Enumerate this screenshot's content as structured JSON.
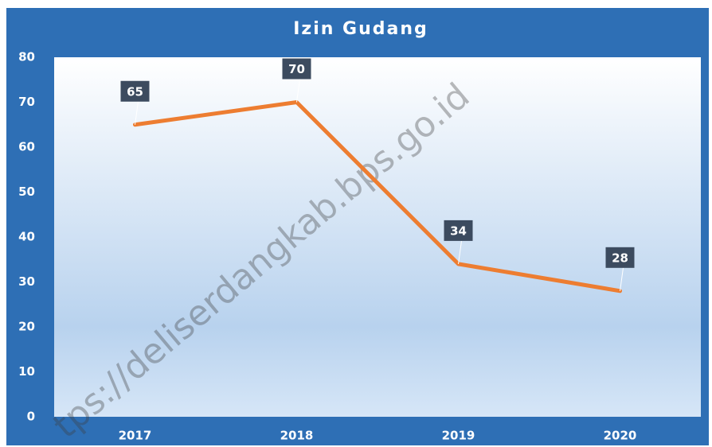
{
  "chart_data": {
    "type": "line",
    "title": "Izin Gudang",
    "categories": [
      "2017",
      "2018",
      "2019",
      "2020"
    ],
    "values": [
      65,
      70,
      34,
      28
    ],
    "color": "#ed7d31",
    "ylim": [
      0,
      80
    ],
    "yticks": [
      0,
      10,
      20,
      30,
      40,
      50,
      60,
      70,
      80
    ],
    "grid": false,
    "annotations": [
      "tps://deliserdangkab.bps.go.id"
    ]
  }
}
